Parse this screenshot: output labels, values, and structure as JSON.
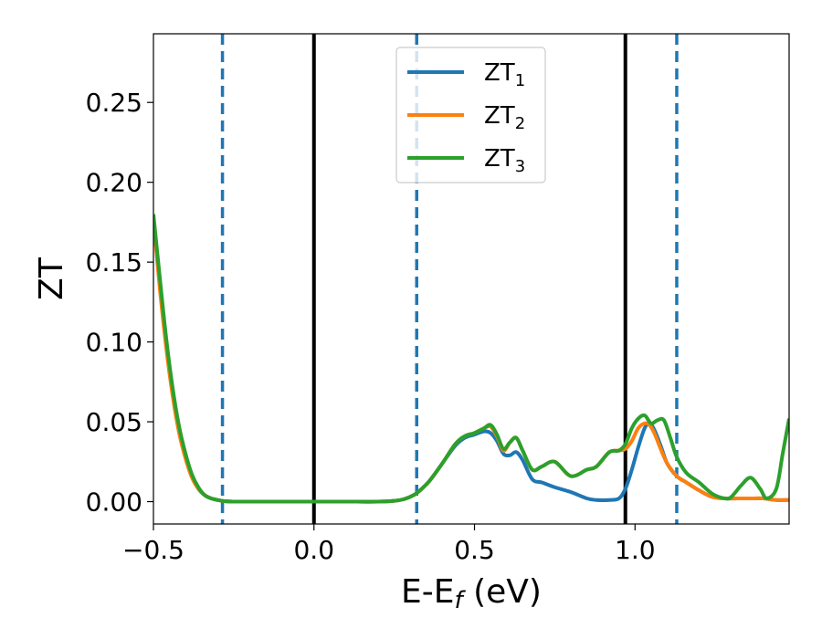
{
  "chart_data": {
    "type": "line",
    "title": "",
    "xlabel": "E-E",
    "xlabel_sub": "f",
    "xlabel_unit": " (eV)",
    "ylabel": "ZT",
    "xlim": [
      -0.5,
      1.48
    ],
    "ylim": [
      -0.014,
      0.293
    ],
    "grid": false,
    "legend_position": "top-center",
    "x_ticks": [
      {
        "value": -0.5,
        "label": "−0.5"
      },
      {
        "value": 0.0,
        "label": "0.0"
      },
      {
        "value": 0.5,
        "label": "0.5"
      },
      {
        "value": 1.0,
        "label": "1.0"
      }
    ],
    "y_ticks": [
      {
        "value": 0.0,
        "label": "0.00"
      },
      {
        "value": 0.05,
        "label": "0.05"
      },
      {
        "value": 0.1,
        "label": "0.10"
      },
      {
        "value": 0.15,
        "label": "0.15"
      },
      {
        "value": 0.2,
        "label": "0.20"
      },
      {
        "value": 0.25,
        "label": "0.25"
      }
    ],
    "vertical_lines": [
      {
        "x": -0.285,
        "style": "dashed",
        "color": "#1f77b4"
      },
      {
        "x": 0.0,
        "style": "solid",
        "color": "#000000"
      },
      {
        "x": 0.32,
        "style": "dashed",
        "color": "#1f77b4"
      },
      {
        "x": 0.97,
        "style": "solid",
        "color": "#000000"
      },
      {
        "x": 1.13,
        "style": "dashed",
        "color": "#1f77b4"
      }
    ],
    "series": [
      {
        "name": "ZT",
        "name_sub": "1",
        "color": "#1f77b4",
        "x": [
          -0.5,
          -0.48,
          -0.46,
          -0.44,
          -0.42,
          -0.4,
          -0.38,
          -0.36,
          -0.34,
          -0.32,
          -0.3,
          -0.28,
          -0.25,
          -0.2,
          -0.1,
          0.0,
          0.1,
          0.2,
          0.25,
          0.28,
          0.31,
          0.33,
          0.36,
          0.4,
          0.44,
          0.47,
          0.5,
          0.53,
          0.55,
          0.57,
          0.59,
          0.61,
          0.63,
          0.65,
          0.68,
          0.71,
          0.75,
          0.8,
          0.85,
          0.88,
          0.92,
          0.95,
          0.97,
          0.99,
          1.01,
          1.03,
          1.045,
          1.06,
          1.08,
          1.1,
          1.13,
          1.16,
          1.2,
          1.24,
          1.28,
          1.32,
          1.36,
          1.4,
          1.44,
          1.48
        ],
        "y": [
          0.178,
          0.135,
          0.098,
          0.068,
          0.045,
          0.028,
          0.016,
          0.008,
          0.004,
          0.002,
          0.001,
          0.0003,
          0.0,
          0.0,
          0.0,
          0.0,
          0.0,
          0.0,
          0.0005,
          0.0015,
          0.004,
          0.007,
          0.013,
          0.024,
          0.035,
          0.04,
          0.042,
          0.044,
          0.043,
          0.038,
          0.03,
          0.029,
          0.031,
          0.026,
          0.014,
          0.012,
          0.009,
          0.006,
          0.002,
          0.001,
          0.001,
          0.002,
          0.008,
          0.02,
          0.034,
          0.046,
          0.049,
          0.045,
          0.035,
          0.024,
          0.016,
          0.012,
          0.007,
          0.003,
          0.002,
          0.002,
          0.002,
          0.002,
          0.001,
          0.001
        ]
      },
      {
        "name": "ZT",
        "name_sub": "2",
        "color": "#ff7f0e",
        "x": [
          -0.5,
          -0.48,
          -0.46,
          -0.44,
          -0.42,
          -0.4,
          -0.38,
          -0.36,
          -0.34,
          -0.32,
          -0.3,
          -0.28,
          -0.25,
          -0.2,
          -0.1,
          0.0,
          0.1,
          0.2,
          0.25,
          0.28,
          0.31,
          0.33,
          0.36,
          0.4,
          0.44,
          0.47,
          0.5,
          0.53,
          0.55,
          0.57,
          0.59,
          0.61,
          0.63,
          0.65,
          0.68,
          0.71,
          0.75,
          0.8,
          0.85,
          0.88,
          0.92,
          0.95,
          0.97,
          0.99,
          1.01,
          1.03,
          1.045,
          1.06,
          1.08,
          1.1,
          1.13,
          1.16,
          1.2,
          1.24,
          1.28,
          1.32,
          1.36,
          1.4,
          1.44,
          1.48
        ],
        "y": [
          0.178,
          0.133,
          0.096,
          0.066,
          0.043,
          0.027,
          0.015,
          0.008,
          0.004,
          0.002,
          0.001,
          0.0003,
          0.0,
          0.0,
          0.0,
          0.0,
          0.0,
          0.0,
          0.0005,
          0.0015,
          0.004,
          0.007,
          0.013,
          0.024,
          0.036,
          0.041,
          0.043,
          0.046,
          0.047,
          0.041,
          0.032,
          0.037,
          0.04,
          0.032,
          0.02,
          0.022,
          0.025,
          0.016,
          0.02,
          0.022,
          0.031,
          0.032,
          0.033,
          0.038,
          0.046,
          0.049,
          0.048,
          0.043,
          0.033,
          0.024,
          0.016,
          0.012,
          0.007,
          0.003,
          0.002,
          0.002,
          0.002,
          0.002,
          0.001,
          0.001
        ]
      },
      {
        "name": "ZT",
        "name_sub": "3",
        "color": "#2ca02c",
        "x": [
          -0.5,
          -0.48,
          -0.46,
          -0.44,
          -0.42,
          -0.4,
          -0.38,
          -0.36,
          -0.34,
          -0.32,
          -0.3,
          -0.28,
          -0.25,
          -0.2,
          -0.1,
          0.0,
          0.1,
          0.2,
          0.25,
          0.28,
          0.31,
          0.33,
          0.36,
          0.4,
          0.44,
          0.47,
          0.5,
          0.53,
          0.55,
          0.57,
          0.59,
          0.61,
          0.63,
          0.65,
          0.68,
          0.71,
          0.75,
          0.8,
          0.85,
          0.88,
          0.92,
          0.95,
          0.97,
          0.99,
          1.01,
          1.03,
          1.05,
          1.07,
          1.09,
          1.11,
          1.13,
          1.16,
          1.2,
          1.24,
          1.28,
          1.3,
          1.33,
          1.36,
          1.39,
          1.41,
          1.44,
          1.46,
          1.48
        ],
        "y": [
          0.18,
          0.14,
          0.102,
          0.071,
          0.047,
          0.03,
          0.017,
          0.009,
          0.004,
          0.002,
          0.001,
          0.0003,
          0.0,
          0.0,
          0.0,
          0.0,
          0.0,
          0.0,
          0.0005,
          0.0015,
          0.004,
          0.007,
          0.013,
          0.024,
          0.036,
          0.041,
          0.043,
          0.046,
          0.048,
          0.042,
          0.033,
          0.037,
          0.04,
          0.032,
          0.02,
          0.022,
          0.025,
          0.016,
          0.02,
          0.022,
          0.031,
          0.032,
          0.036,
          0.046,
          0.052,
          0.054,
          0.049,
          0.051,
          0.051,
          0.04,
          0.028,
          0.018,
          0.012,
          0.005,
          0.002,
          0.003,
          0.01,
          0.015,
          0.008,
          0.002,
          0.008,
          0.03,
          0.052
        ]
      }
    ]
  }
}
